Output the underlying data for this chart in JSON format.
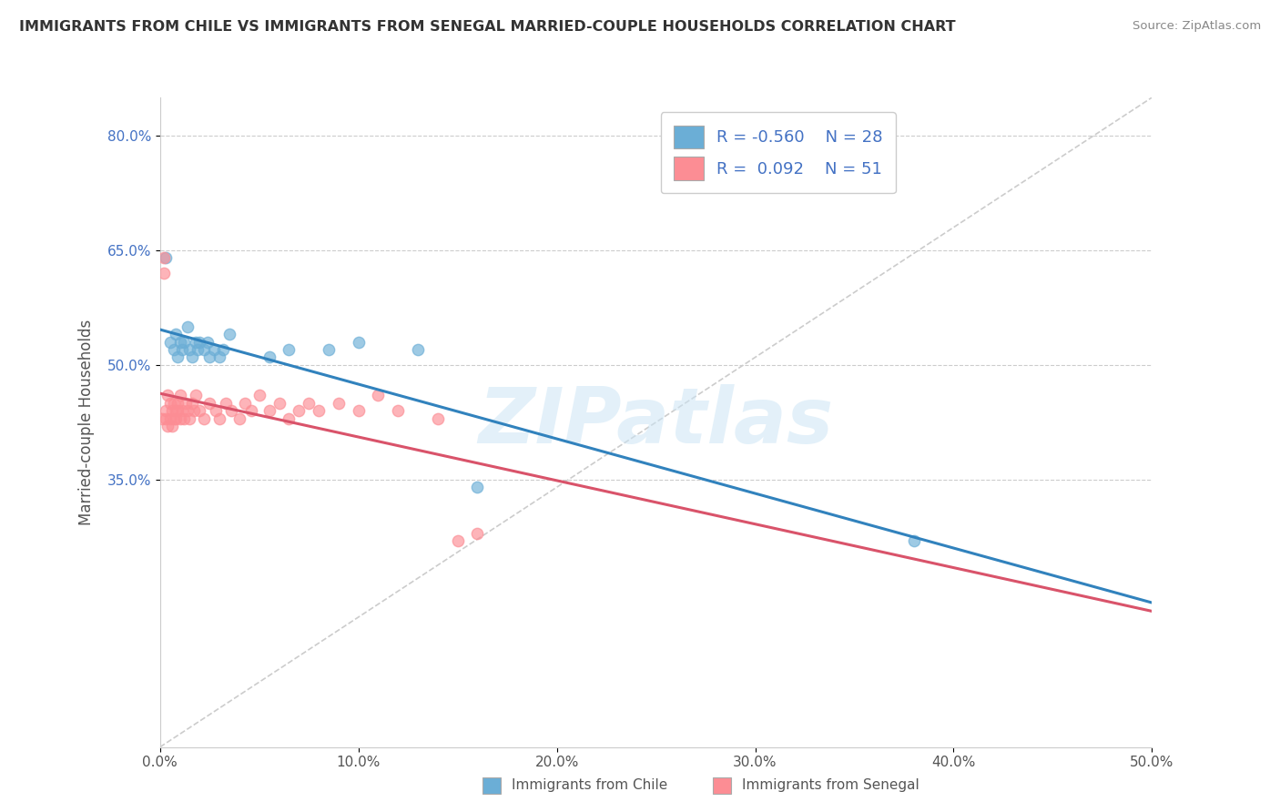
{
  "title": "IMMIGRANTS FROM CHILE VS IMMIGRANTS FROM SENEGAL MARRIED-COUPLE HOUSEHOLDS CORRELATION CHART",
  "source": "Source: ZipAtlas.com",
  "ylabel": "Married-couple Households",
  "xlim": [
    0.0,
    0.5
  ],
  "ylim": [
    0.0,
    0.85
  ],
  "xticks": [
    0.0,
    0.1,
    0.2,
    0.3,
    0.4,
    0.5
  ],
  "xticklabels": [
    "0.0%",
    "10.0%",
    "20.0%",
    "30.0%",
    "40.0%",
    "50.0%"
  ],
  "yticks": [
    0.35,
    0.5,
    0.65,
    0.8
  ],
  "yticklabels": [
    "35.0%",
    "50.0%",
    "65.0%",
    "80.0%"
  ],
  "background_color": "#ffffff",
  "color_chile": "#6baed6",
  "color_senegal": "#fc8d94",
  "line_color_chile": "#3182bd",
  "line_color_senegal": "#d9536a",
  "scatter_alpha": 0.65,
  "scatter_size": 80,
  "chile_x": [
    0.003,
    0.005,
    0.007,
    0.008,
    0.009,
    0.01,
    0.011,
    0.012,
    0.014,
    0.015,
    0.016,
    0.018,
    0.019,
    0.02,
    0.022,
    0.024,
    0.025,
    0.027,
    0.03,
    0.032,
    0.035,
    0.055,
    0.065,
    0.085,
    0.1,
    0.13,
    0.16,
    0.38
  ],
  "chile_y": [
    0.64,
    0.53,
    0.52,
    0.54,
    0.51,
    0.53,
    0.52,
    0.53,
    0.55,
    0.52,
    0.51,
    0.53,
    0.52,
    0.53,
    0.52,
    0.53,
    0.51,
    0.52,
    0.51,
    0.52,
    0.54,
    0.51,
    0.52,
    0.52,
    0.53,
    0.52,
    0.34,
    0.27
  ],
  "senegal_x": [
    0.001,
    0.002,
    0.002,
    0.003,
    0.003,
    0.004,
    0.004,
    0.005,
    0.005,
    0.006,
    0.006,
    0.007,
    0.007,
    0.008,
    0.008,
    0.009,
    0.009,
    0.01,
    0.01,
    0.011,
    0.012,
    0.013,
    0.014,
    0.015,
    0.016,
    0.017,
    0.018,
    0.02,
    0.022,
    0.025,
    0.028,
    0.03,
    0.033,
    0.036,
    0.04,
    0.043,
    0.046,
    0.05,
    0.055,
    0.06,
    0.065,
    0.07,
    0.075,
    0.08,
    0.09,
    0.1,
    0.11,
    0.12,
    0.14,
    0.15,
    0.16
  ],
  "senegal_y": [
    0.43,
    0.64,
    0.62,
    0.44,
    0.43,
    0.46,
    0.42,
    0.45,
    0.43,
    0.44,
    0.42,
    0.45,
    0.43,
    0.44,
    0.43,
    0.45,
    0.44,
    0.46,
    0.43,
    0.44,
    0.43,
    0.45,
    0.44,
    0.43,
    0.45,
    0.44,
    0.46,
    0.44,
    0.43,
    0.45,
    0.44,
    0.43,
    0.45,
    0.44,
    0.43,
    0.45,
    0.44,
    0.46,
    0.44,
    0.45,
    0.43,
    0.44,
    0.45,
    0.44,
    0.45,
    0.44,
    0.46,
    0.44,
    0.43,
    0.27,
    0.28
  ]
}
